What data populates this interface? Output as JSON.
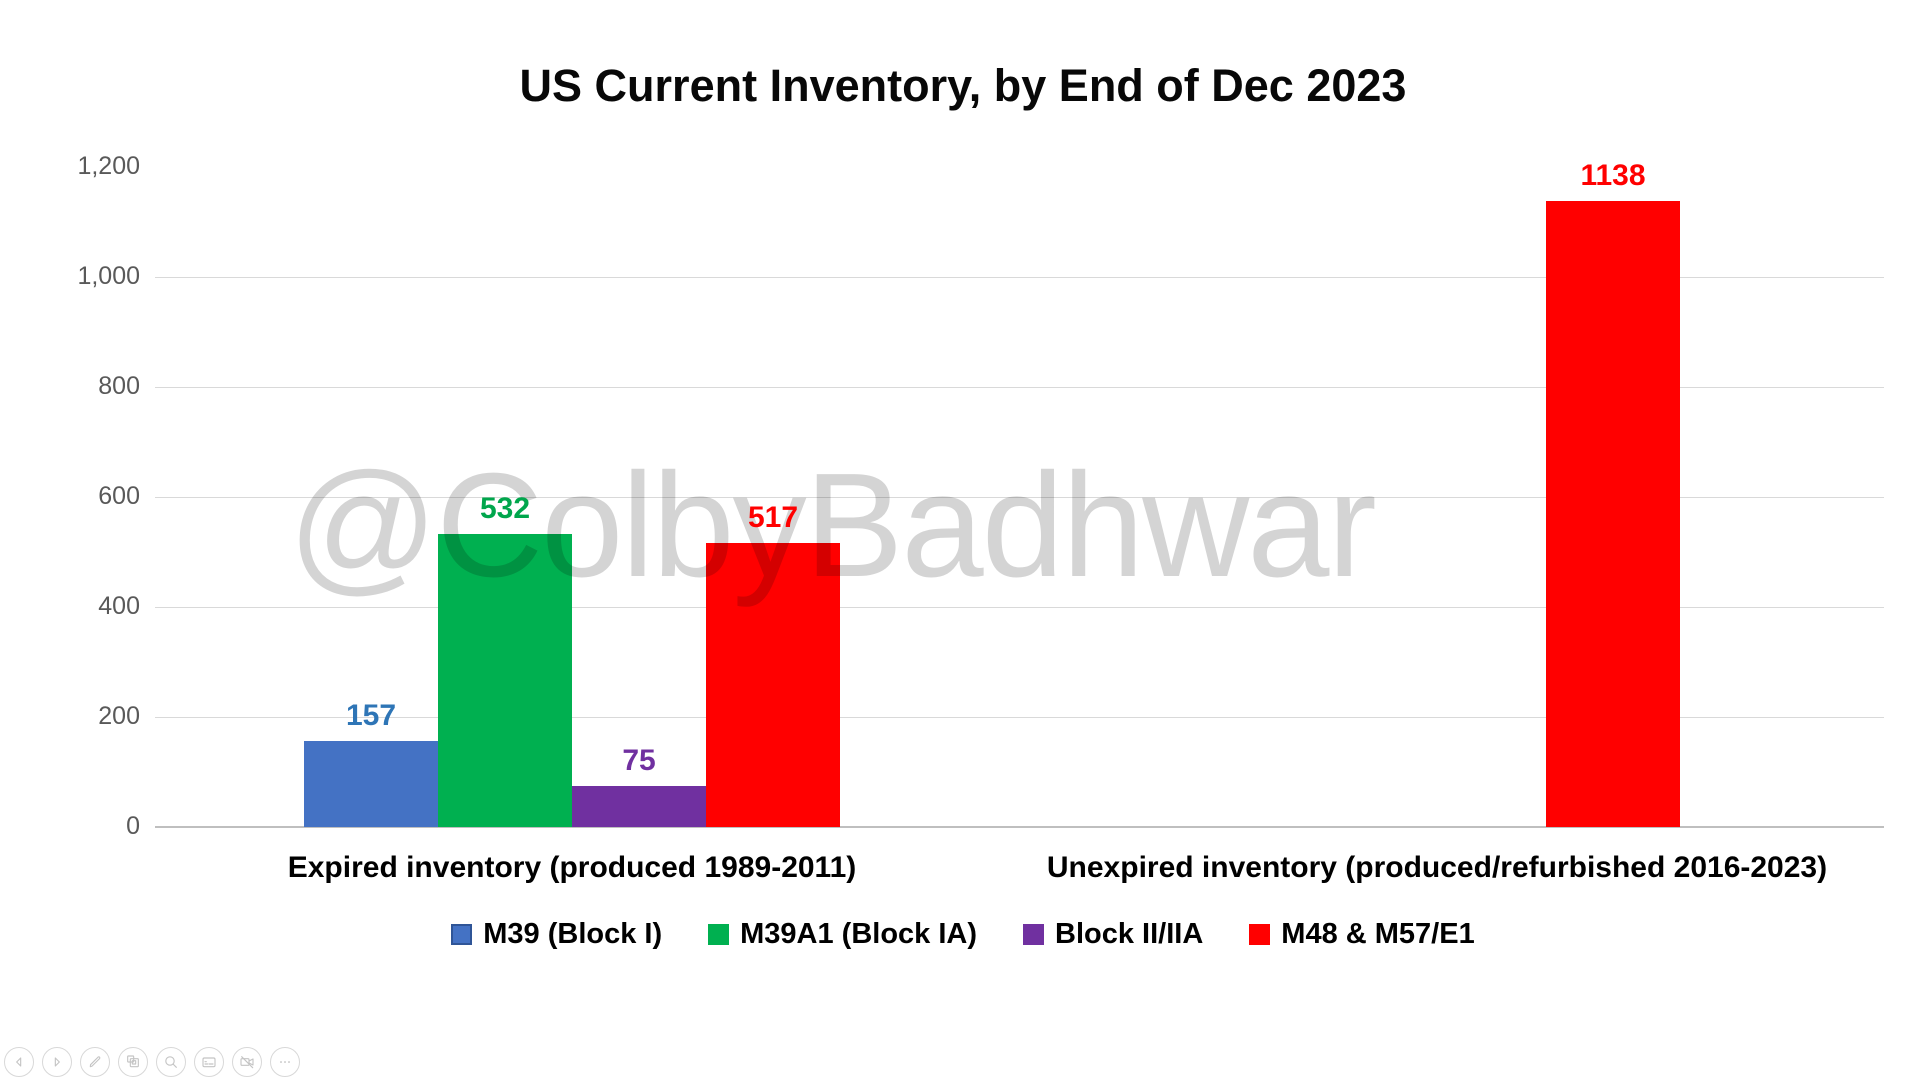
{
  "watermark": "@ColbyBadhwar",
  "chart_data": {
    "type": "bar",
    "title": "US Current Inventory, by End of Dec 2023",
    "categories": [
      "Expired inventory (produced 1989-2011)",
      "Unexpired inventory (produced/refurbished 2016-2023)"
    ],
    "series": [
      {
        "name": "M39 (Block I)",
        "color": "#4472C4",
        "label_color": "#2E75B6",
        "swatch_border": "#2F5597",
        "values": [
          157,
          null
        ]
      },
      {
        "name": "M39A1 (Block IA)",
        "color": "#00B050",
        "label_color": "#00A64C",
        "swatch_border": "",
        "values": [
          532,
          null
        ]
      },
      {
        "name": "Block II/IIA",
        "color": "#7030A0",
        "label_color": "#7030A0",
        "swatch_border": "",
        "values": [
          75,
          null
        ]
      },
      {
        "name": "M48 & M57/E1",
        "color": "#FF0000",
        "label_color": "#FF0000",
        "swatch_border": "",
        "values": [
          517,
          1138
        ]
      }
    ],
    "ylim": [
      0,
      1200
    ],
    "ytick_interval": 200,
    "yticks": [
      "0",
      "200",
      "400",
      "600",
      "800",
      "1,000",
      "1,200"
    ],
    "grid": true,
    "legend_position": "bottom",
    "colors": {
      "gridline": "#D9D9D9",
      "axis_line": "#BFBFBF",
      "tick_text": "#595959",
      "watermark_gray": "#D3D3D3"
    }
  },
  "toolbar": {
    "items": [
      {
        "name": "previous"
      },
      {
        "name": "next"
      },
      {
        "name": "pen"
      },
      {
        "name": "see-all-slides"
      },
      {
        "name": "zoom"
      },
      {
        "name": "captions"
      },
      {
        "name": "camera"
      },
      {
        "name": "more-options"
      }
    ]
  }
}
